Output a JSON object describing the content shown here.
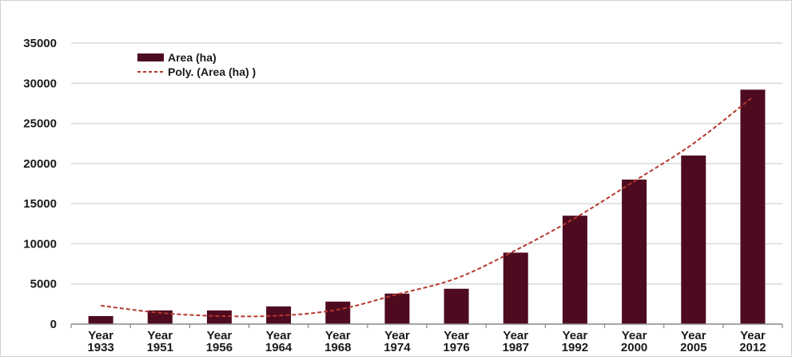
{
  "chart_data": {
    "type": "bar",
    "categories": [
      [
        "Year",
        "1933"
      ],
      [
        "Year",
        "1951"
      ],
      [
        "Year",
        "1956"
      ],
      [
        "Year",
        "1964"
      ],
      [
        "Year",
        "1968"
      ],
      [
        "Year",
        "1974"
      ],
      [
        "Year",
        "1976"
      ],
      [
        "Year",
        "1987"
      ],
      [
        "Year",
        "1992"
      ],
      [
        "Year",
        "2000"
      ],
      [
        "Year",
        "2005"
      ],
      [
        "Year",
        "2012"
      ]
    ],
    "series": [
      {
        "name": "Area (ha)",
        "values": [
          1000,
          1700,
          1700,
          2200,
          2800,
          3800,
          4400,
          8900,
          13500,
          18000,
          21000,
          29200
        ],
        "color": "#4e0b1f"
      }
    ],
    "trendline": {
      "name": "Poly. (Area (ha) )",
      "kind": "polynomial",
      "values": [
        2300,
        1400,
        1000,
        1050,
        1800,
        3700,
        5700,
        9200,
        13200,
        17800,
        22500,
        28300
      ],
      "color": "#b5382e"
    },
    "yticks": [
      "0",
      "5000",
      "10000",
      "15000",
      "20000",
      "25000",
      "30000",
      "35000"
    ],
    "ylim": [
      0,
      35000
    ],
    "grid": true,
    "legend_position": "top-left",
    "title": "",
    "xlabel": "",
    "ylabel": ""
  }
}
